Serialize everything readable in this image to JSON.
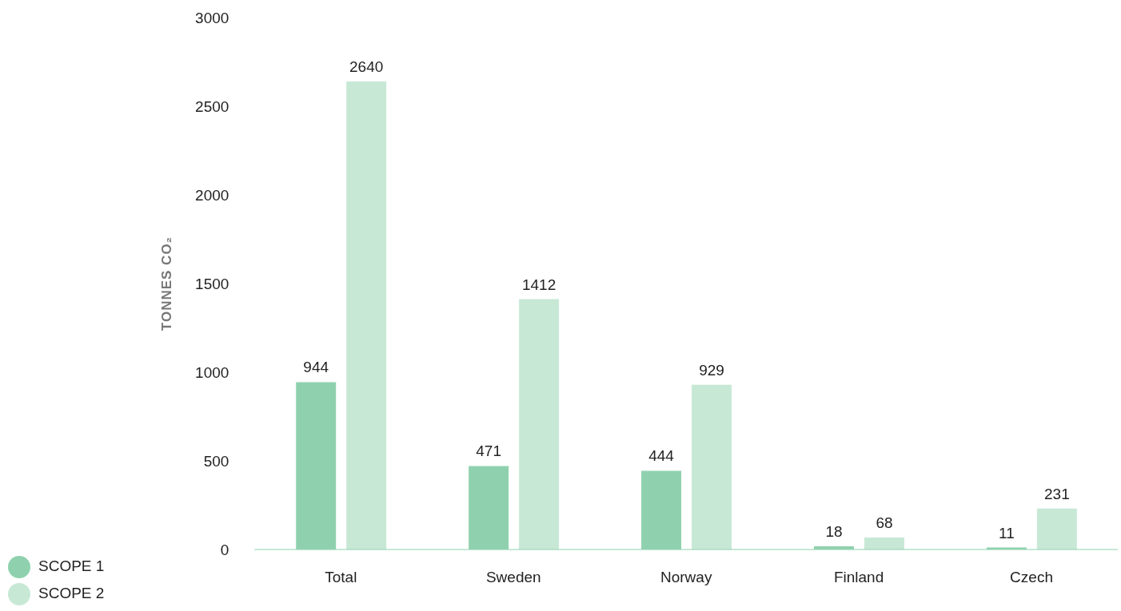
{
  "chart_data": {
    "type": "bar",
    "ylabel": "TONNES CO₂",
    "categories": [
      "Total",
      "Sweden",
      "Norway",
      "Finland",
      "Czech"
    ],
    "series": [
      {
        "name": "SCOPE 1",
        "color": "#8fd1ae",
        "values": [
          944,
          471,
          444,
          18,
          11
        ]
      },
      {
        "name": "SCOPE 2",
        "color": "#c8e8d6",
        "values": [
          2640,
          1412,
          929,
          68,
          231
        ]
      }
    ],
    "ylim": [
      0,
      3000
    ],
    "yticks": [
      0,
      500,
      1000,
      1500,
      2000,
      2500,
      3000
    ],
    "grid": false,
    "legend": "bottom left",
    "data_labels": true
  }
}
